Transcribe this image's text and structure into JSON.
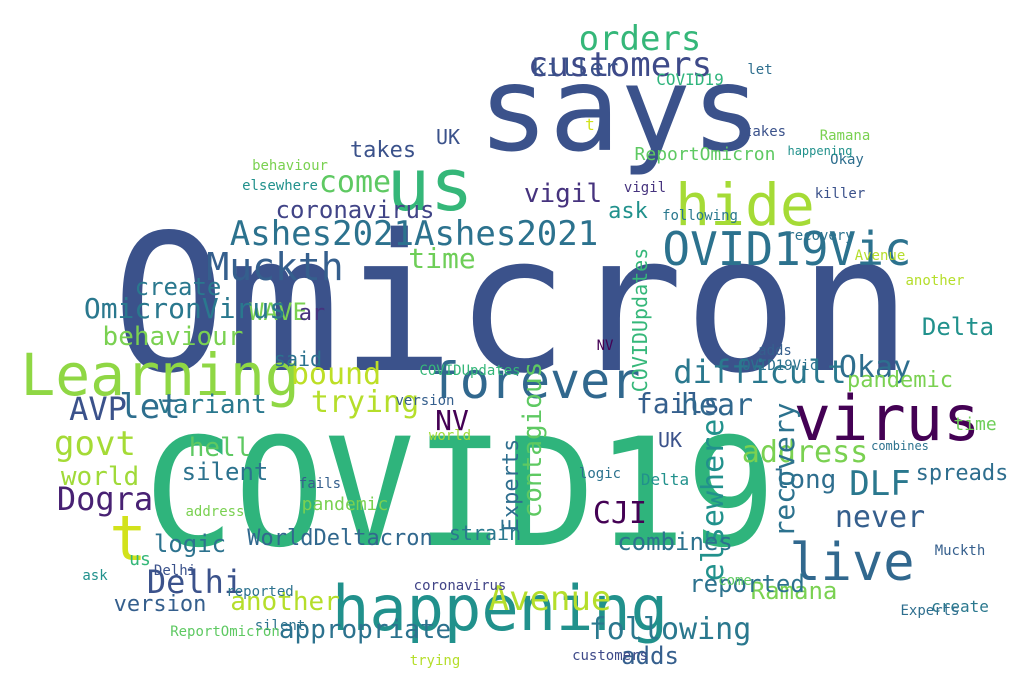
{
  "words": [
    {
      "text": "Omicron",
      "color": "#3b528b"
    },
    {
      "text": "COVID19",
      "color": "#2fb47c"
    },
    {
      "text": "says",
      "color": "#3b528b"
    },
    {
      "text": "happening",
      "color": "#21918c"
    },
    {
      "text": "us",
      "color": "#35b779"
    },
    {
      "text": "hide",
      "color": "#a5db36"
    },
    {
      "text": "Learning",
      "color": "#8fd744"
    },
    {
      "text": "forever",
      "color": "#31688e"
    },
    {
      "text": "virus",
      "color": "#440154"
    },
    {
      "text": "OVID19Vic",
      "color": "#2c728e"
    },
    {
      "text": "Ashes2021Ashes2021",
      "color": "#2c728e"
    },
    {
      "text": "live",
      "color": "#31688e"
    },
    {
      "text": "Muckth",
      "color": "#355f8d"
    },
    {
      "text": "orders",
      "color": "#35b779"
    },
    {
      "text": "customers",
      "color": "#3e4a89"
    },
    {
      "text": "killer",
      "color": "#3b528b"
    },
    {
      "text": "vigil",
      "color": "#46337e"
    },
    {
      "text": "come",
      "color": "#5ec962"
    },
    {
      "text": "coronavirus",
      "color": "#414487"
    },
    {
      "text": "time",
      "color": "#6ece58"
    },
    {
      "text": "WAVE",
      "color": "#7ad151"
    },
    {
      "text": "create",
      "color": "#2a788e"
    },
    {
      "text": "OmicronVirus",
      "color": "#2a788e"
    },
    {
      "text": "behaviour",
      "color": "#7ad151"
    },
    {
      "text": "takes",
      "color": "#3b528b"
    },
    {
      "text": "ask",
      "color": "#21918c"
    },
    {
      "text": "difficult",
      "color": "#2a788e"
    },
    {
      "text": "trying",
      "color": "#b5de2b"
    },
    {
      "text": "address",
      "color": "#7ad151"
    },
    {
      "text": "fails",
      "color": "#355f8d"
    },
    {
      "text": "hear",
      "color": "#31688e"
    },
    {
      "text": "Okay",
      "color": "#2e6e8e"
    },
    {
      "text": "bound",
      "color": "#bddf26"
    },
    {
      "text": "variant",
      "color": "#2a788e"
    },
    {
      "text": "AVP",
      "color": "#3b528b"
    },
    {
      "text": "let",
      "color": "#2e6e8e"
    },
    {
      "text": "govt",
      "color": "#a5db36"
    },
    {
      "text": "hell",
      "color": "#5ec962"
    },
    {
      "text": "Dogra",
      "color": "#482173"
    },
    {
      "text": "silent",
      "color": "#2c728e"
    },
    {
      "text": "world",
      "color": "#a0da39"
    },
    {
      "text": "DLF",
      "color": "#2a788e"
    },
    {
      "text": "long",
      "color": "#2e6e8e"
    },
    {
      "text": "never",
      "color": "#355f8d"
    },
    {
      "text": "logic",
      "color": "#2c728e"
    },
    {
      "text": "Delhi",
      "color": "#3b528b"
    },
    {
      "text": "Avenue",
      "color": "#b5de2b"
    },
    {
      "text": "following",
      "color": "#2a788e"
    },
    {
      "text": "appropriate",
      "color": "#2c728e"
    },
    {
      "text": "another",
      "color": "#b5de2b"
    },
    {
      "text": "Ramana",
      "color": "#7ad151"
    },
    {
      "text": "spreads",
      "color": "#2e6e8e"
    },
    {
      "text": "adds",
      "color": "#355f8d"
    },
    {
      "text": "version",
      "color": "#355f8d"
    },
    {
      "text": "recovery",
      "color": "#2c728e"
    },
    {
      "text": "elsewhere",
      "color": "#21918c"
    },
    {
      "text": "contagious",
      "color": "#5ec962"
    },
    {
      "text": "NV",
      "color": "#440154"
    },
    {
      "text": "t",
      "color": "#d2e21b"
    },
    {
      "text": "combines",
      "color": "#2c728e"
    },
    {
      "text": "pandemic",
      "color": "#7ad151"
    },
    {
      "text": "Experts",
      "color": "#2e6e8e"
    },
    {
      "text": "WorldDeltacron",
      "color": "#31688e"
    },
    {
      "text": "reported",
      "color": "#2c728e"
    },
    {
      "text": "COVIDUpdates",
      "color": "#35b779"
    },
    {
      "text": "ReportOmicron",
      "color": "#5ec962"
    },
    {
      "text": "Delta",
      "color": "#21918c"
    },
    {
      "text": "strain",
      "color": "#2a788e"
    },
    {
      "text": "UK",
      "color": "#3b528b"
    },
    {
      "text": "CJI",
      "color": "#440154"
    },
    {
      "text": "said",
      "color": "#2c728e"
    },
    {
      "text": "ar",
      "color": "#46337e"
    }
  ]
}
